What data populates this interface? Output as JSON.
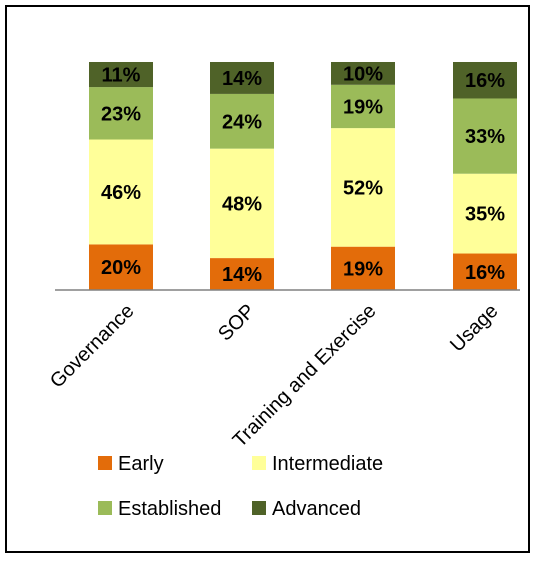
{
  "chart_data": {
    "type": "bar",
    "stacked": true,
    "percent": true,
    "categories": [
      "Governance",
      "SOP",
      "Training and Exercise",
      "Usage"
    ],
    "series": [
      {
        "name": "Early",
        "values": [
          20,
          14,
          19,
          16
        ],
        "color": "#E36C0A"
      },
      {
        "name": "Intermediate",
        "values": [
          46,
          48,
          52,
          35
        ],
        "color": "#FFFF99"
      },
      {
        "name": "Established",
        "values": [
          23,
          24,
          19,
          33
        ],
        "color": "#9BBB59"
      },
      {
        "name": "Advanced",
        "values": [
          11,
          14,
          10,
          16
        ],
        "color": "#4F6228"
      }
    ],
    "value_labels": [
      [
        "20%",
        "14%",
        "19%",
        "16%"
      ],
      [
        "46%",
        "48%",
        "52%",
        "35%"
      ],
      [
        "23%",
        "24%",
        "19%",
        "33%"
      ],
      [
        "11%",
        "14%",
        "10%",
        "16%"
      ]
    ],
    "ylim": [
      0,
      100
    ],
    "grid": false,
    "legend_position": "bottom"
  }
}
